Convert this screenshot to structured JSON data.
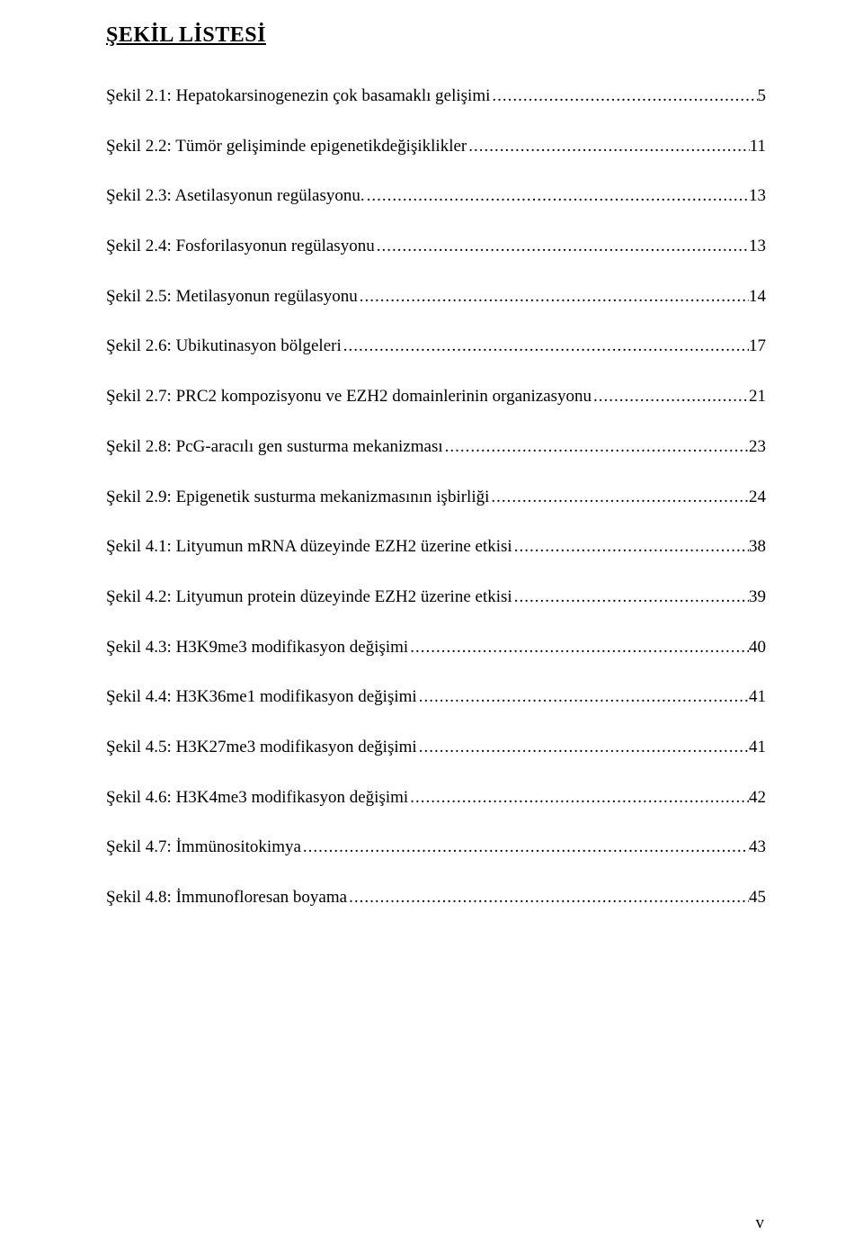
{
  "title": "ŞEKİL LİSTESİ",
  "entries": [
    {
      "label": "Şekil 2.1: Hepatokarsinogenezin çok basamaklı gelişimi",
      "page": "5"
    },
    {
      "label": "Şekil 2.2: Tümör gelişiminde epigenetikdeğişiklikler",
      "page": "11"
    },
    {
      "label": "Şekil 2.3: Asetilasyonun regülasyonu.",
      "page": "13"
    },
    {
      "label": "Şekil 2.4: Fosforilasyonun regülasyonu",
      "page": "13"
    },
    {
      "label": "Şekil 2.5: Metilasyonun regülasyonu",
      "page": "14"
    },
    {
      "label": "Şekil 2.6: Ubikutinasyon bölgeleri",
      "page": "17"
    },
    {
      "label": "Şekil 2.7: PRC2 kompozisyonu ve EZH2 domainlerinin organizasyonu",
      "page": "21"
    },
    {
      "label": "Şekil 2.8: PcG-aracılı gen susturma mekanizması",
      "page": "23"
    },
    {
      "label": "Şekil 2.9: Epigenetik susturma mekanizmasının işbirliği",
      "page": "24"
    },
    {
      "label": "Şekil 4.1: Lityumun mRNA düzeyinde EZH2 üzerine etkisi",
      "page": "38"
    },
    {
      "label": "Şekil 4.2: Lityumun protein düzeyinde EZH2 üzerine etkisi",
      "page": "39"
    },
    {
      "label": "Şekil 4.3: H3K9me3 modifikasyon değişimi",
      "page": "40"
    },
    {
      "label": "Şekil 4.4: H3K36me1 modifikasyon değişimi",
      "page": "41"
    },
    {
      "label": "Şekil 4.5: H3K27me3 modifikasyon değişimi",
      "page": "41"
    },
    {
      "label": "Şekil 4.6: H3K4me3 modifikasyon değişimi",
      "page": "42"
    },
    {
      "label": "Şekil 4.7: İmmünositokimya",
      "page": "43"
    },
    {
      "label": "Şekil 4.8: İmmunofloresan boyama",
      "page": "45"
    }
  ],
  "pageNumber": "v",
  "style": {
    "background_color": "#ffffff",
    "text_color": "#000000",
    "title_fontsize": 24,
    "body_fontsize": 19,
    "font_family": "Times New Roman"
  }
}
